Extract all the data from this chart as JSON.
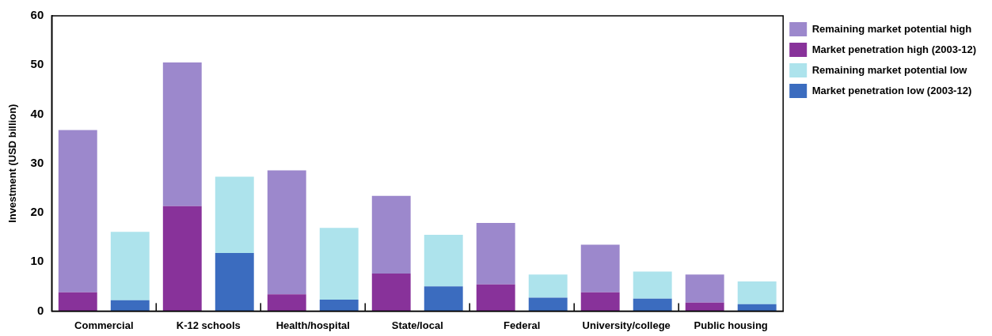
{
  "chart_data": {
    "type": "bar",
    "stacked": true,
    "ylabel": "Investment (USD billion)",
    "categories": [
      "Commercial",
      null,
      "K-12 schools",
      null,
      "Health/hospital",
      null,
      "State/local",
      null,
      "Federal",
      null,
      "University/college",
      null,
      "Public housing",
      null
    ],
    "ylim": [
      0,
      60
    ],
    "yticks": [
      0,
      10,
      20,
      30,
      40,
      50,
      60
    ],
    "grid": false,
    "legend": "top right",
    "series": [
      {
        "name": "Market penetration high (2003-12)",
        "color": "#88329a",
        "values": [
          3.8,
          null,
          21.3,
          null,
          3.4,
          null,
          7.6,
          null,
          5.4,
          null,
          3.8,
          null,
          1.7,
          null
        ]
      },
      {
        "name": "Remaining market potential high",
        "color": "#9c88cc",
        "values": [
          33.0,
          null,
          29.2,
          null,
          25.2,
          null,
          15.8,
          null,
          12.5,
          null,
          9.7,
          null,
          5.7,
          null
        ]
      },
      {
        "name": "Market penetration low (2003-12)",
        "color": "#3b6cbf",
        "values": [
          null,
          2.2,
          null,
          11.8,
          null,
          2.3,
          null,
          5.0,
          null,
          2.7,
          null,
          2.5,
          null,
          1.4
        ]
      },
      {
        "name": "Remaining market potential low",
        "color": "#ade3ec",
        "values": [
          null,
          13.9,
          null,
          15.5,
          null,
          14.6,
          null,
          10.5,
          null,
          4.7,
          null,
          5.5,
          null,
          4.6
        ]
      }
    ]
  }
}
